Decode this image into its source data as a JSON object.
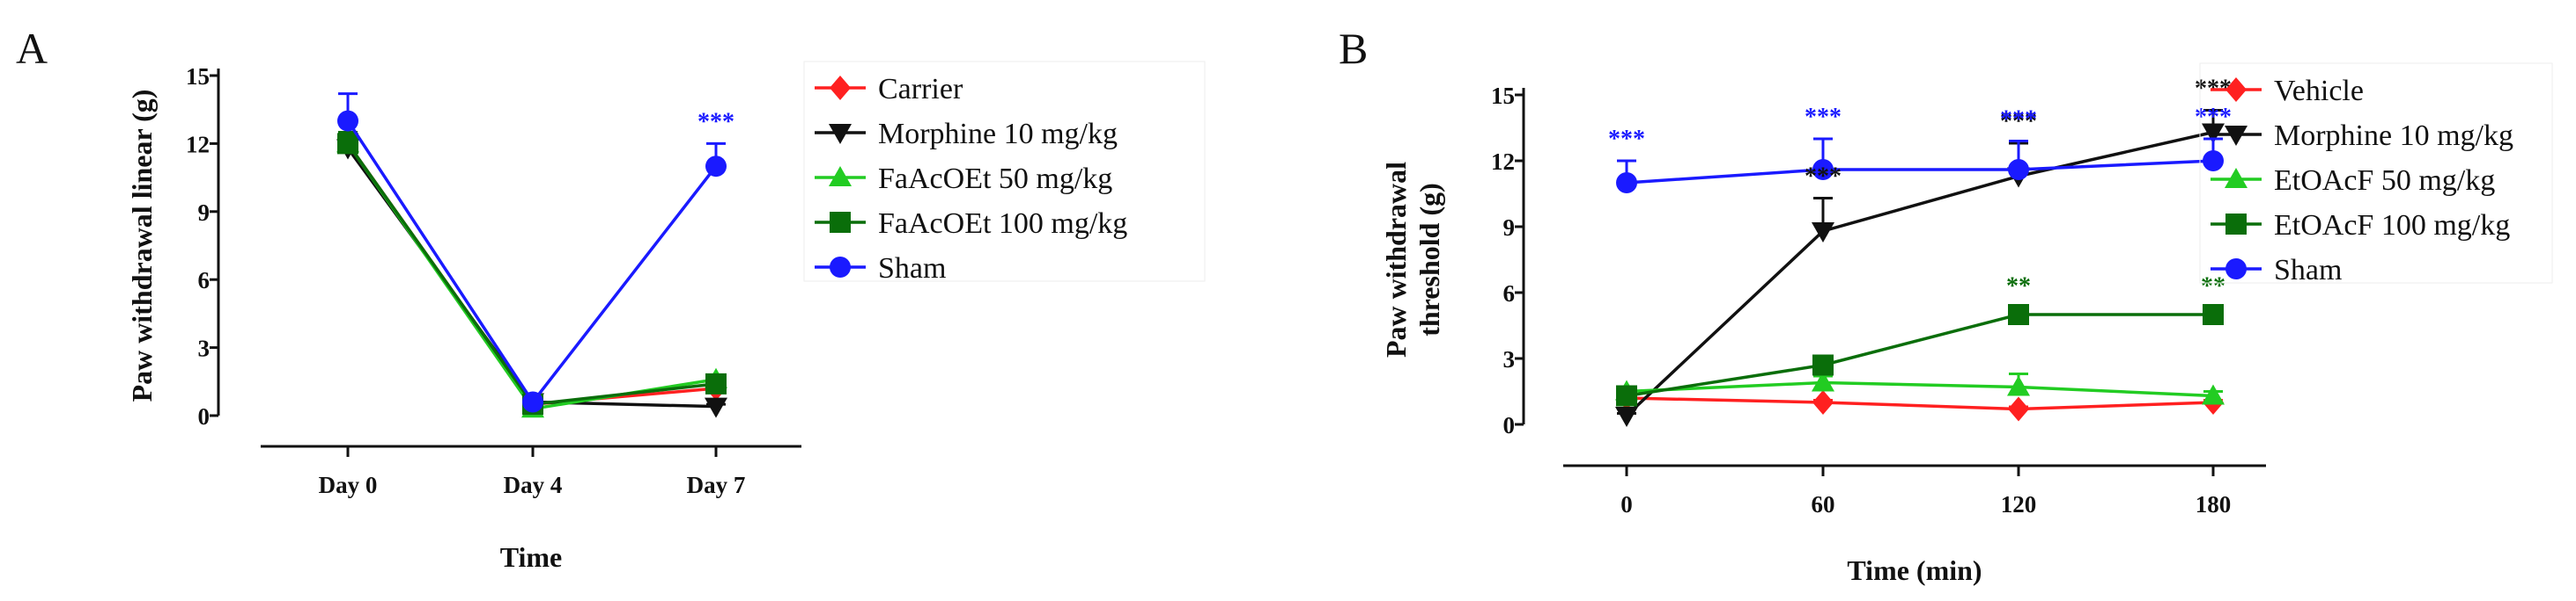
{
  "figure": {
    "panels": [
      {
        "letter": "A"
      },
      {
        "letter": "B"
      }
    ]
  },
  "chart_data": [
    {
      "type": "line",
      "panel": "A",
      "title": "",
      "xlabel": "Time",
      "ylabel": "Paw withdrawal linear (g)",
      "categories": [
        "Day 0",
        "Day 4",
        "Day 7"
      ],
      "ylim": [
        0,
        15
      ],
      "yticks": [
        "0",
        "3",
        "6",
        "9",
        "12",
        "15"
      ],
      "grid": false,
      "legend_position": "right",
      "series": [
        {
          "name": "Carrier",
          "color": "#ff2020",
          "marker": "diamond",
          "values": [
            12.0,
            0.5,
            1.2
          ],
          "errors": [
            0.3,
            0.1,
            0.2
          ]
        },
        {
          "name": "Morphine 10 mg/kg",
          "color": "#111111",
          "marker": "triangle-down",
          "values": [
            11.8,
            0.6,
            0.4
          ],
          "errors": [
            0.4,
            0.1,
            0.1
          ]
        },
        {
          "name": "FaAcOEt 50 mg/kg",
          "color": "#22cc22",
          "marker": "triangle-up",
          "values": [
            12.0,
            0.3,
            1.6
          ],
          "errors": [
            0.4,
            0.1,
            0.2
          ]
        },
        {
          "name": "FaAcOEt 100 mg/kg",
          "color": "#0a6e0a",
          "marker": "square",
          "values": [
            12.0,
            0.5,
            1.4
          ],
          "errors": [
            0.5,
            0.1,
            0.2
          ]
        },
        {
          "name": "Sham",
          "color": "#1a1aff",
          "marker": "circle",
          "values": [
            13.0,
            0.6,
            11.0
          ],
          "errors": [
            1.2,
            0.1,
            1.0
          ]
        }
      ],
      "annotations": [
        {
          "text": "***",
          "series": "Sham",
          "category": "Day 7",
          "color": "#1a1aff"
        }
      ]
    },
    {
      "type": "line",
      "panel": "B",
      "title": "",
      "xlabel": "Time (min)",
      "ylabel": "Paw withdrawal threshold (g)",
      "ylabel_lines": [
        "Paw withdrawal",
        "threshold (g)"
      ],
      "categories": [
        "0",
        "60",
        "120",
        "180"
      ],
      "ylim": [
        0,
        15
      ],
      "yticks": [
        "0",
        "3",
        "6",
        "9",
        "12",
        "15"
      ],
      "grid": false,
      "legend_position": "right",
      "series": [
        {
          "name": "Vehicle",
          "color": "#ff2020",
          "marker": "diamond",
          "values": [
            1.2,
            1.0,
            0.7,
            1.0
          ],
          "errors": [
            0.2,
            0.1,
            0.1,
            0.1
          ]
        },
        {
          "name": "Morphine 10 mg/kg",
          "color": "#111111",
          "marker": "triangle-down",
          "values": [
            0.4,
            8.8,
            11.3,
            13.3
          ],
          "errors": [
            0.1,
            1.5,
            1.5,
            1.0
          ]
        },
        {
          "name": "EtOAcF  50 mg/kg",
          "color": "#22cc22",
          "marker": "triangle-up",
          "values": [
            1.5,
            1.9,
            1.7,
            1.3
          ],
          "errors": [
            0.2,
            0.3,
            0.6,
            0.2
          ]
        },
        {
          "name": "EtOAcF  100 mg/kg",
          "color": "#0a6e0a",
          "marker": "square",
          "values": [
            1.3,
            2.7,
            5.0,
            5.0
          ],
          "errors": [
            0.1,
            0.3,
            0.3,
            0.3
          ]
        },
        {
          "name": "Sham",
          "color": "#1a1aff",
          "marker": "circle",
          "values": [
            11.0,
            11.6,
            11.6,
            12.0
          ],
          "errors": [
            1.0,
            1.4,
            1.3,
            1.0
          ]
        }
      ],
      "annotations": [
        {
          "text": "***",
          "series": "Sham",
          "category": "0",
          "color": "#1a1aff"
        },
        {
          "text": "***",
          "series": "Sham",
          "category": "60",
          "color": "#1a1aff"
        },
        {
          "text": "***",
          "series": "Morphine 10 mg/kg",
          "category": "60",
          "color": "#111111"
        },
        {
          "text": "***",
          "series": "Morphine 10 mg/kg",
          "category": "120",
          "color": "#111111"
        },
        {
          "text": "***",
          "series": "Sham",
          "category": "120",
          "color": "#1a1aff"
        },
        {
          "text": "***",
          "series": "Morphine 10 mg/kg",
          "category": "180",
          "color": "#111111"
        },
        {
          "text": "***",
          "series": "Sham",
          "category": "180",
          "color": "#1a1aff"
        },
        {
          "text": "**",
          "series": "EtOAcF  100 mg/kg",
          "category": "120",
          "color": "#0a6e0a"
        },
        {
          "text": "**",
          "series": "EtOAcF  100 mg/kg",
          "category": "180",
          "color": "#0a6e0a"
        }
      ]
    }
  ]
}
